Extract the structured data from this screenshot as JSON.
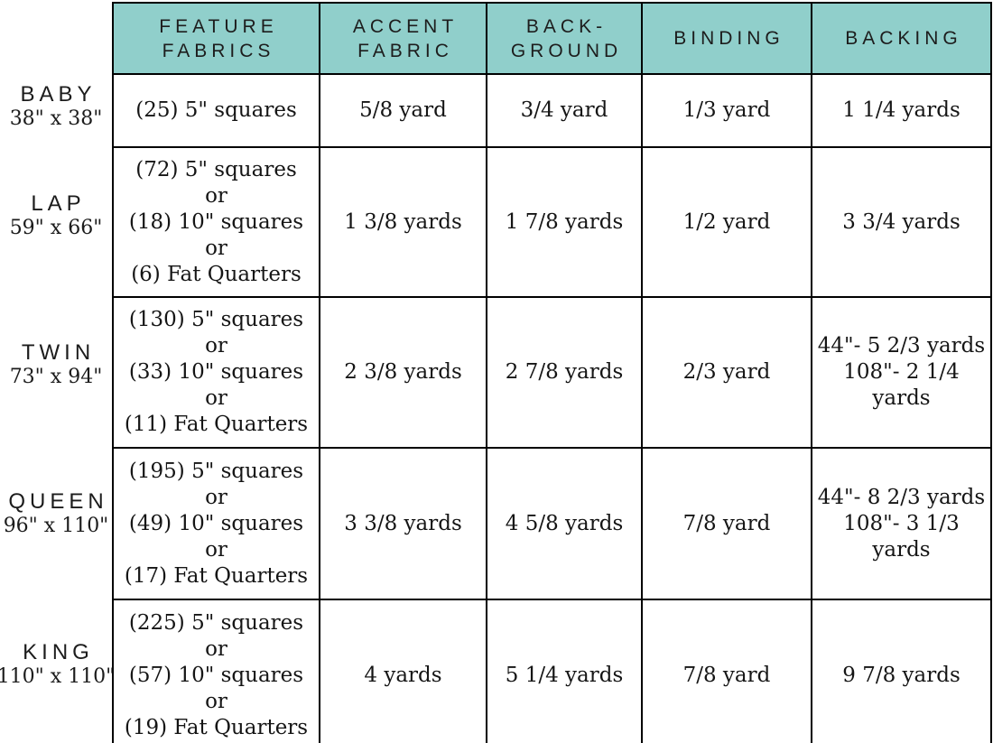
{
  "colors": {
    "header_bg": "#90CFCB",
    "border": "#000000",
    "text": "#161616"
  },
  "header": {
    "columns": [
      {
        "id": "feature_fabrics",
        "lines": [
          "FEATURE",
          "FABRICS"
        ]
      },
      {
        "id": "accent_fabric",
        "lines": [
          "ACCENT",
          "FABRIC"
        ]
      },
      {
        "id": "background",
        "lines": [
          "BACK-",
          "GROUND"
        ]
      },
      {
        "id": "binding",
        "lines": [
          "BINDING"
        ]
      },
      {
        "id": "backing",
        "lines": [
          "BACKING"
        ]
      }
    ]
  },
  "rows": [
    {
      "size": "BABY",
      "dimensions": "38\" x 38\"",
      "feature_fabrics": [
        "(25) 5\" squares"
      ],
      "accent_fabric": [
        "5/8 yard"
      ],
      "background": [
        "3/4 yard"
      ],
      "binding": [
        "1/3 yard"
      ],
      "backing": [
        "1 1/4 yards"
      ]
    },
    {
      "size": "LAP",
      "dimensions": "59\" x 66\"",
      "feature_fabrics": [
        "(72) 5\" squares",
        "or",
        "(18) 10\" squares",
        "or",
        "(6) Fat Quarters"
      ],
      "accent_fabric": [
        "1 3/8 yards"
      ],
      "background": [
        "1 7/8 yards"
      ],
      "binding": [
        "1/2 yard"
      ],
      "backing": [
        "3 3/4 yards"
      ]
    },
    {
      "size": "TWIN",
      "dimensions": "73\" x 94\"",
      "feature_fabrics": [
        "(130) 5\" squares",
        "or",
        "(33) 10\" squares",
        "or",
        "(11) Fat Quarters"
      ],
      "accent_fabric": [
        "2 3/8 yards"
      ],
      "background": [
        "2 7/8 yards"
      ],
      "binding": [
        "2/3 yard"
      ],
      "backing": [
        "44\"- 5 2/3 yards",
        "108\"- 2 1/4 yards"
      ]
    },
    {
      "size": "QUEEN",
      "dimensions": "96\" x 110\"",
      "feature_fabrics": [
        "(195) 5\" squares",
        "or",
        "(49) 10\" squares",
        "or",
        "(17) Fat Quarters"
      ],
      "accent_fabric": [
        "3 3/8 yards"
      ],
      "background": [
        "4 5/8 yards"
      ],
      "binding": [
        "7/8 yard"
      ],
      "backing": [
        "44\"- 8 2/3 yards",
        "108\"- 3 1/3 yards"
      ]
    },
    {
      "size": "KING",
      "dimensions": "110\" x 110\"",
      "feature_fabrics": [
        "(225) 5\" squares",
        "or",
        "(57) 10\" squares",
        "or",
        "(19) Fat Quarters"
      ],
      "accent_fabric": [
        "4 yards"
      ],
      "background": [
        "5 1/4 yards"
      ],
      "binding": [
        "7/8 yard"
      ],
      "backing": [
        "9 7/8 yards"
      ]
    }
  ]
}
